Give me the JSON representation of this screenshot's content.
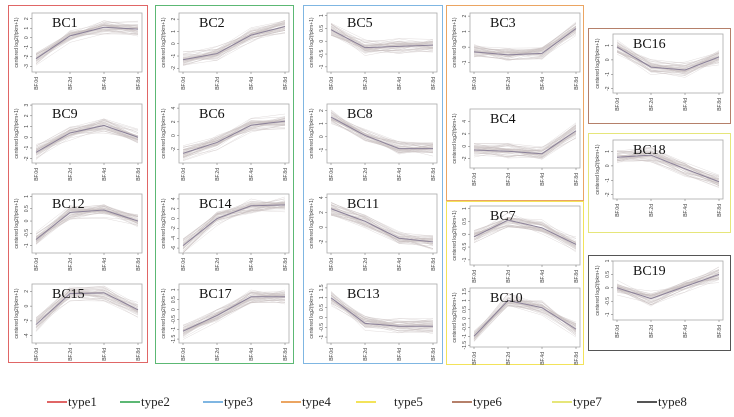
{
  "ylabel": "centered log2(fpkm+1)",
  "xlabels": [
    "BF.0d",
    "BF.2d",
    "BF.4d",
    "BF.8d"
  ],
  "legend": [
    {
      "label": "type1",
      "color": "#e06666"
    },
    {
      "label": "type2",
      "color": "#5cb874"
    },
    {
      "label": "type3",
      "color": "#7fb6e2"
    },
    {
      "label": "type4",
      "color": "#eba562"
    },
    {
      "label": "type5",
      "color": "#f3e35a"
    },
    {
      "label": "type6",
      "color": "#b5806a"
    },
    {
      "label": "type7",
      "color": "#e6e67a"
    },
    {
      "label": "type8",
      "color": "#555555"
    }
  ],
  "chart_data": [
    {
      "type": "line",
      "title": "BC1",
      "group": "type1",
      "mean": [
        -2.2,
        0.2,
        1.1,
        0.9
      ],
      "ylim": [
        -3.6,
        2.6
      ],
      "yticks": [
        -3,
        -2,
        -1,
        0,
        1,
        2
      ]
    },
    {
      "type": "line",
      "title": "BC9",
      "group": "type1",
      "mean": [
        -1.4,
        0.4,
        1.1,
        0.0
      ],
      "ylim": [
        -2.4,
        3.1
      ],
      "yticks": [
        -2,
        -1,
        0,
        1,
        2,
        3
      ]
    },
    {
      "type": "line",
      "title": "BC12",
      "group": "type1",
      "mean": [
        -0.75,
        0.35,
        0.45,
        0.0
      ],
      "ylim": [
        -1.3,
        1.1
      ],
      "yticks": [
        -1.0,
        -0.5,
        0.0,
        0.5,
        1.0
      ]
    },
    {
      "type": "line",
      "title": "BC15",
      "group": "type1",
      "mean": [
        -2.5,
        1.7,
        1.8,
        -0.5
      ],
      "ylim": [
        -5,
        3
      ],
      "yticks": [
        -4,
        -2,
        0,
        2
      ]
    },
    {
      "type": "line",
      "title": "BC2",
      "group": "type2",
      "mean": [
        -1.3,
        -0.8,
        0.7,
        1.4
      ],
      "ylim": [
        -2.3,
        2.5
      ],
      "yticks": [
        -2,
        -1,
        0,
        1,
        2
      ]
    },
    {
      "type": "line",
      "title": "BC6",
      "group": "type2",
      "mean": [
        -2.6,
        -1.0,
        1.5,
        2.1
      ],
      "ylim": [
        -4,
        4.6
      ],
      "yticks": [
        -2,
        0,
        2,
        4
      ]
    },
    {
      "type": "line",
      "title": "BC14",
      "group": "type2",
      "mean": [
        -5.5,
        0.0,
        2.6,
        2.8
      ],
      "ylim": [
        -7,
        5
      ],
      "yticks": [
        -6,
        -4,
        -2,
        0,
        2,
        4
      ]
    },
    {
      "type": "line",
      "title": "BC17",
      "group": "type2",
      "mean": [
        -1.1,
        -0.3,
        0.65,
        0.65
      ],
      "ylim": [
        -1.7,
        1.3
      ],
      "yticks": [
        -1.5,
        -1.0,
        -0.5,
        0.0,
        0.5,
        1.0
      ]
    },
    {
      "type": "line",
      "title": "BC5",
      "group": "type3",
      "mean": [
        0.45,
        -0.25,
        -0.2,
        -0.15
      ],
      "ylim": [
        -1.2,
        1.1
      ],
      "yticks": [
        -1.0,
        -0.5,
        0.0,
        0.5,
        1.0
      ]
    },
    {
      "type": "line",
      "title": "BC8",
      "group": "type3",
      "mean": [
        1.5,
        0.1,
        -0.9,
        -0.9
      ],
      "ylim": [
        -2,
        2.5
      ],
      "yticks": [
        -1,
        0,
        1,
        2
      ]
    },
    {
      "type": "line",
      "title": "BC11",
      "group": "type3",
      "mean": [
        2.5,
        0.8,
        -1.5,
        -2.0
      ],
      "ylim": [
        -3.5,
        4.5
      ],
      "yticks": [
        -2,
        0,
        2,
        4
      ]
    },
    {
      "type": "line",
      "title": "BC13",
      "group": "type3",
      "mean": [
        1.0,
        -0.3,
        -0.45,
        -0.45
      ],
      "ylim": [
        -1.3,
        1.7
      ],
      "yticks": [
        -1.0,
        -0.5,
        0.0,
        0.5,
        1.0,
        1.5
      ]
    },
    {
      "type": "line",
      "title": "BC3",
      "group": "type4",
      "mean": [
        -0.3,
        -0.5,
        -0.4,
        1.2
      ],
      "ylim": [
        -1.6,
        2.2
      ],
      "yticks": [
        -1,
        0,
        1,
        2
      ]
    },
    {
      "type": "line",
      "title": "BC4",
      "group": "type4",
      "mean": [
        -0.6,
        -0.8,
        -1.2,
        2.5
      ],
      "ylim": [
        -3.5,
        6
      ],
      "yticks": [
        -2,
        0,
        2,
        4
      ]
    },
    {
      "type": "line",
      "title": "BC7",
      "group": "type5",
      "mean": [
        -0.1,
        0.55,
        0.25,
        -0.4
      ],
      "ylim": [
        -1.2,
        1.1
      ],
      "yticks": [
        -1.0,
        -0.5,
        0.0,
        0.5,
        1.0
      ]
    },
    {
      "type": "line",
      "title": "BC10",
      "group": "type5",
      "mean": [
        -1.0,
        1.0,
        0.6,
        -0.6
      ],
      "ylim": [
        -1.6,
        1.7
      ],
      "yticks": [
        -1.5,
        -1.0,
        -0.5,
        0.0,
        0.5,
        1.0,
        1.5
      ]
    },
    {
      "type": "line",
      "title": "BC16",
      "group": "type6",
      "mean": [
        0.9,
        -0.5,
        -0.7,
        0.2
      ],
      "ylim": [
        -2.3,
        1.8
      ],
      "yticks": [
        -2,
        -1,
        0,
        1
      ]
    },
    {
      "type": "line",
      "title": "BC18",
      "group": "type7",
      "mean": [
        0.6,
        0.75,
        -0.2,
        -1.1
      ],
      "ylim": [
        -2.3,
        1.8
      ],
      "yticks": [
        -2,
        -1,
        0,
        1
      ]
    },
    {
      "type": "line",
      "title": "BC19",
      "group": "type8",
      "mean": [
        0.0,
        -0.4,
        0.05,
        0.5
      ],
      "ylim": [
        -1.2,
        1.0
      ],
      "yticks": [
        -1.0,
        -0.5,
        0.0,
        0.5,
        1.0
      ]
    }
  ]
}
